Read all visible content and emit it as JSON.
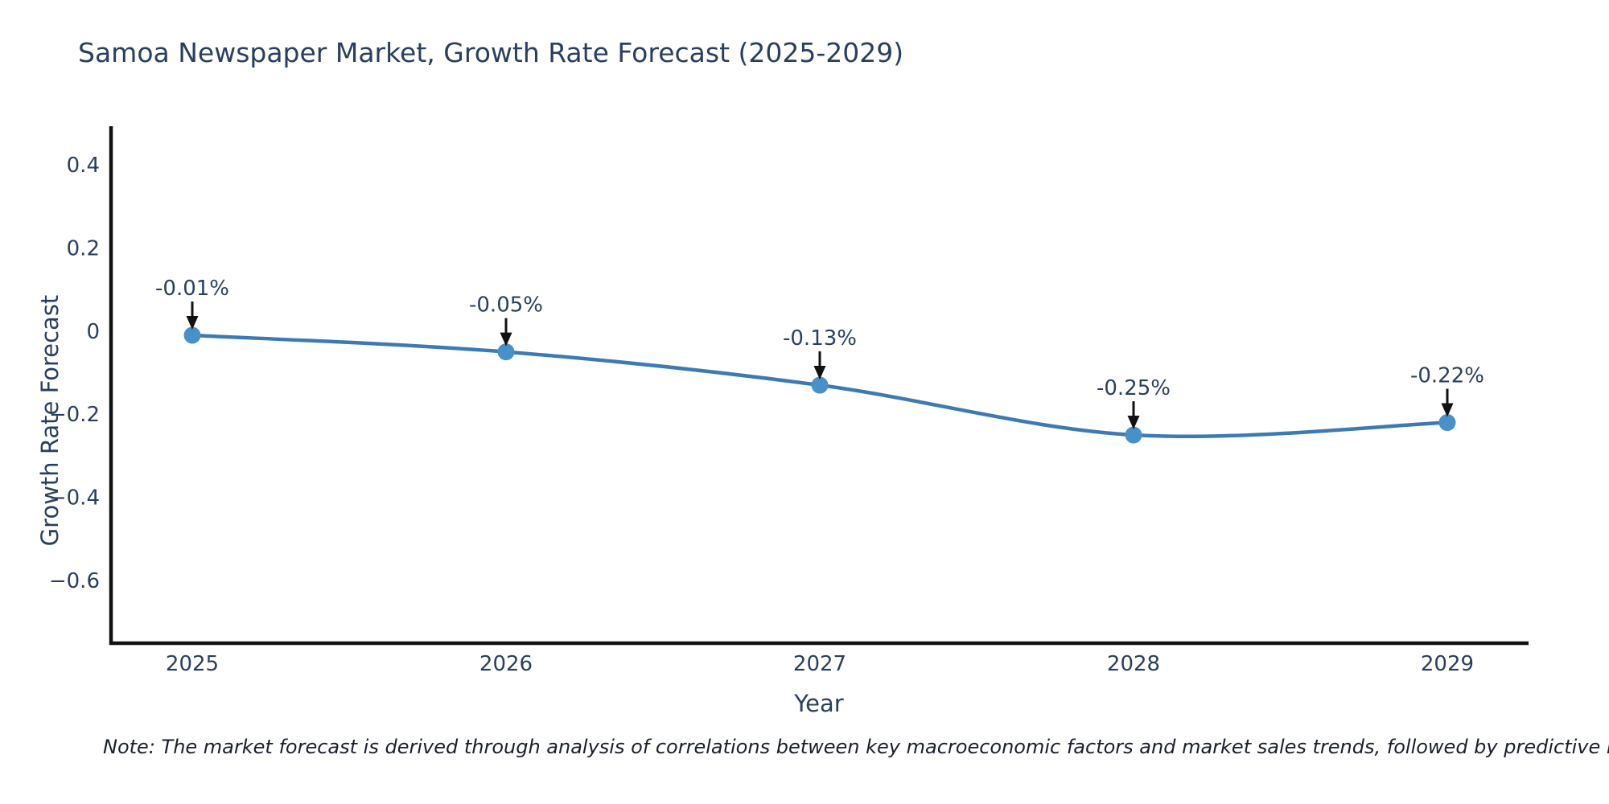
{
  "title": "Samoa Newspaper Market, Growth Rate Forecast (2025-2029)",
  "note": "Note: The market forecast is derived through analysis of correlations between key macroeconomic factors and market sales trends, followed by predictive modeling to project future sales.",
  "chart_data": {
    "type": "line",
    "title": "Samoa Newspaper Market, Growth Rate Forecast (2025-2029)",
    "xlabel": "Year",
    "ylabel": "Growth Rate Forecast",
    "categories": [
      "2025",
      "2026",
      "2027",
      "2028",
      "2029"
    ],
    "x": [
      2025,
      2026,
      2027,
      2028,
      2029
    ],
    "series": [
      {
        "name": "Growth Rate Forecast",
        "values": [
          -0.01,
          -0.05,
          -0.13,
          -0.25,
          -0.22
        ]
      }
    ],
    "point_labels": [
      "-0.01%",
      "-0.05%",
      "-0.13%",
      "-0.25%",
      "-0.22%"
    ],
    "yticks": [
      0.4,
      0.2,
      0,
      -0.2,
      -0.4,
      -0.6
    ],
    "ytick_labels": [
      "0.4",
      "0.2",
      "0",
      "−0.2",
      "−0.4",
      "−0.6"
    ],
    "ylim": [
      -0.751,
      0.493
    ],
    "xlim": [
      2024.741,
      2029.259
    ],
    "grid": false,
    "legend": "none",
    "line_shape": "spline",
    "annotation_style": "value label above point with downward black arrow",
    "colors": {
      "line": "#3d7ab4",
      "marker": "#4a90c8",
      "axis": "#111111",
      "text": "#2a3f5f",
      "arrow": "#111111",
      "note_text": "#1a1f2b",
      "background": "#ffffff"
    }
  }
}
